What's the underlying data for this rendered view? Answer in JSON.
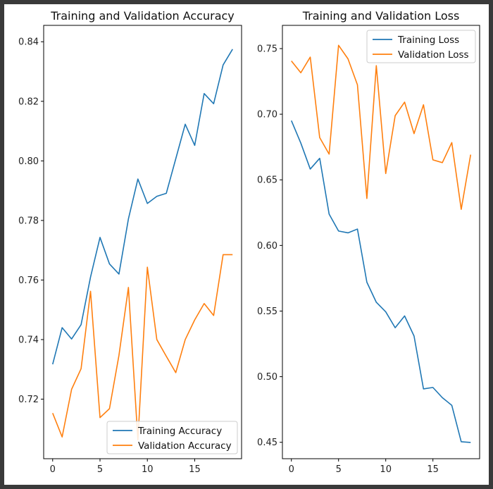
{
  "colors": {
    "series1": "#1f77b4",
    "series2": "#ff7f0e",
    "frame_bg": "#ffffff",
    "outer_bg": "#3a3a3a"
  },
  "chart_data": [
    {
      "type": "line",
      "title": "Training and Validation Accuracy",
      "xlabel": "",
      "ylabel": "",
      "xlim": [
        -0.95,
        19.95
      ],
      "ylim": [
        0.7,
        0.8455
      ],
      "xticks": [
        0,
        5,
        10,
        15
      ],
      "yticks": [
        0.72,
        0.74,
        0.76,
        0.78,
        0.8,
        0.82,
        0.84
      ],
      "ytick_labels": [
        "0.72",
        "0.74",
        "0.76",
        "0.78",
        "0.80",
        "0.82",
        "0.84"
      ],
      "grid": false,
      "legend_placement": "lower-right",
      "x": [
        0,
        1,
        2,
        3,
        4,
        5,
        6,
        7,
        8,
        9,
        10,
        11,
        12,
        13,
        14,
        15,
        16,
        17,
        18,
        19
      ],
      "series": [
        {
          "name": "Training Accuracy",
          "values": [
            0.7317,
            0.744,
            0.7402,
            0.745,
            0.761,
            0.7743,
            0.7654,
            0.762,
            0.7805,
            0.7939,
            0.7857,
            0.7881,
            0.7891,
            0.8007,
            0.8123,
            0.8052,
            0.8226,
            0.8192,
            0.8322,
            0.8375
          ]
        },
        {
          "name": "Validation Accuracy",
          "values": [
            0.7153,
            0.7073,
            0.7233,
            0.7302,
            0.7562,
            0.7138,
            0.7168,
            0.7347,
            0.7575,
            0.7063,
            0.7643,
            0.74,
            0.7344,
            0.7289,
            0.74,
            0.7466,
            0.7521,
            0.7481,
            0.7685,
            0.7685
          ]
        }
      ]
    },
    {
      "type": "line",
      "title": "Training and Validation Loss",
      "xlabel": "",
      "ylabel": "",
      "xlim": [
        -0.95,
        19.95
      ],
      "ylim": [
        0.4375,
        0.7677
      ],
      "xticks": [
        0,
        5,
        10,
        15
      ],
      "yticks": [
        0.45,
        0.5,
        0.55,
        0.6,
        0.65,
        0.7,
        0.75
      ],
      "ytick_labels": [
        "0.45",
        "0.50",
        "0.55",
        "0.60",
        "0.65",
        "0.70",
        "0.75"
      ],
      "grid": false,
      "legend_placement": "upper-right",
      "x": [
        0,
        1,
        2,
        3,
        4,
        5,
        6,
        7,
        8,
        9,
        10,
        11,
        12,
        13,
        14,
        15,
        16,
        17,
        18,
        19
      ],
      "series": [
        {
          "name": "Training Loss",
          "values": [
            0.6951,
            0.678,
            0.6582,
            0.6664,
            0.6239,
            0.611,
            0.6096,
            0.6125,
            0.572,
            0.5567,
            0.5494,
            0.5373,
            0.5463,
            0.531,
            0.4907,
            0.4918,
            0.484,
            0.4782,
            0.4504,
            0.4499
          ]
        },
        {
          "name": "Validation Loss",
          "values": [
            0.7406,
            0.7316,
            0.7435,
            0.6822,
            0.6696,
            0.7525,
            0.7422,
            0.7224,
            0.6358,
            0.737,
            0.6548,
            0.6989,
            0.7092,
            0.6852,
            0.7072,
            0.6652,
            0.6631,
            0.6784,
            0.6275,
            0.6692
          ]
        }
      ]
    }
  ]
}
